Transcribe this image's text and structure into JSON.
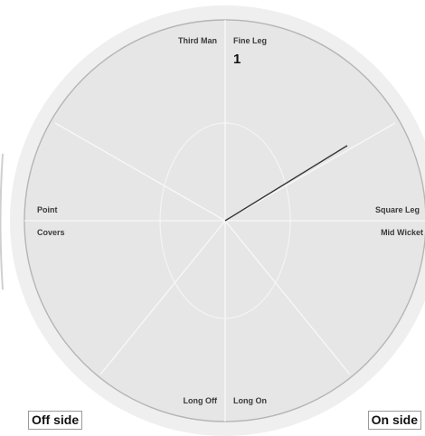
{
  "wagon_wheel": {
    "zones": [
      {
        "key": "third_man",
        "label": "Third Man"
      },
      {
        "key": "fine_leg",
        "label": "Fine Leg"
      },
      {
        "key": "square_leg",
        "label": "Square Leg"
      },
      {
        "key": "mid_wicket",
        "label": "Mid Wicket"
      },
      {
        "key": "long_on",
        "label": "Long On"
      },
      {
        "key": "long_off",
        "label": "Long Off"
      },
      {
        "key": "covers",
        "label": "Covers"
      },
      {
        "key": "point",
        "label": "Point"
      }
    ],
    "zone_runs": {
      "fine_leg": "1"
    },
    "shots": [
      {
        "zone": "fine_leg",
        "runs": 1
      }
    ],
    "sides": {
      "off": "Off side",
      "on": "On side"
    },
    "colors": {
      "outer_ring": "#efefef",
      "field": "#e6e6e6",
      "boundary_stroke": "#b5b5b5",
      "division_line": "#f8f8f8",
      "shot_line": "#333333"
    }
  }
}
